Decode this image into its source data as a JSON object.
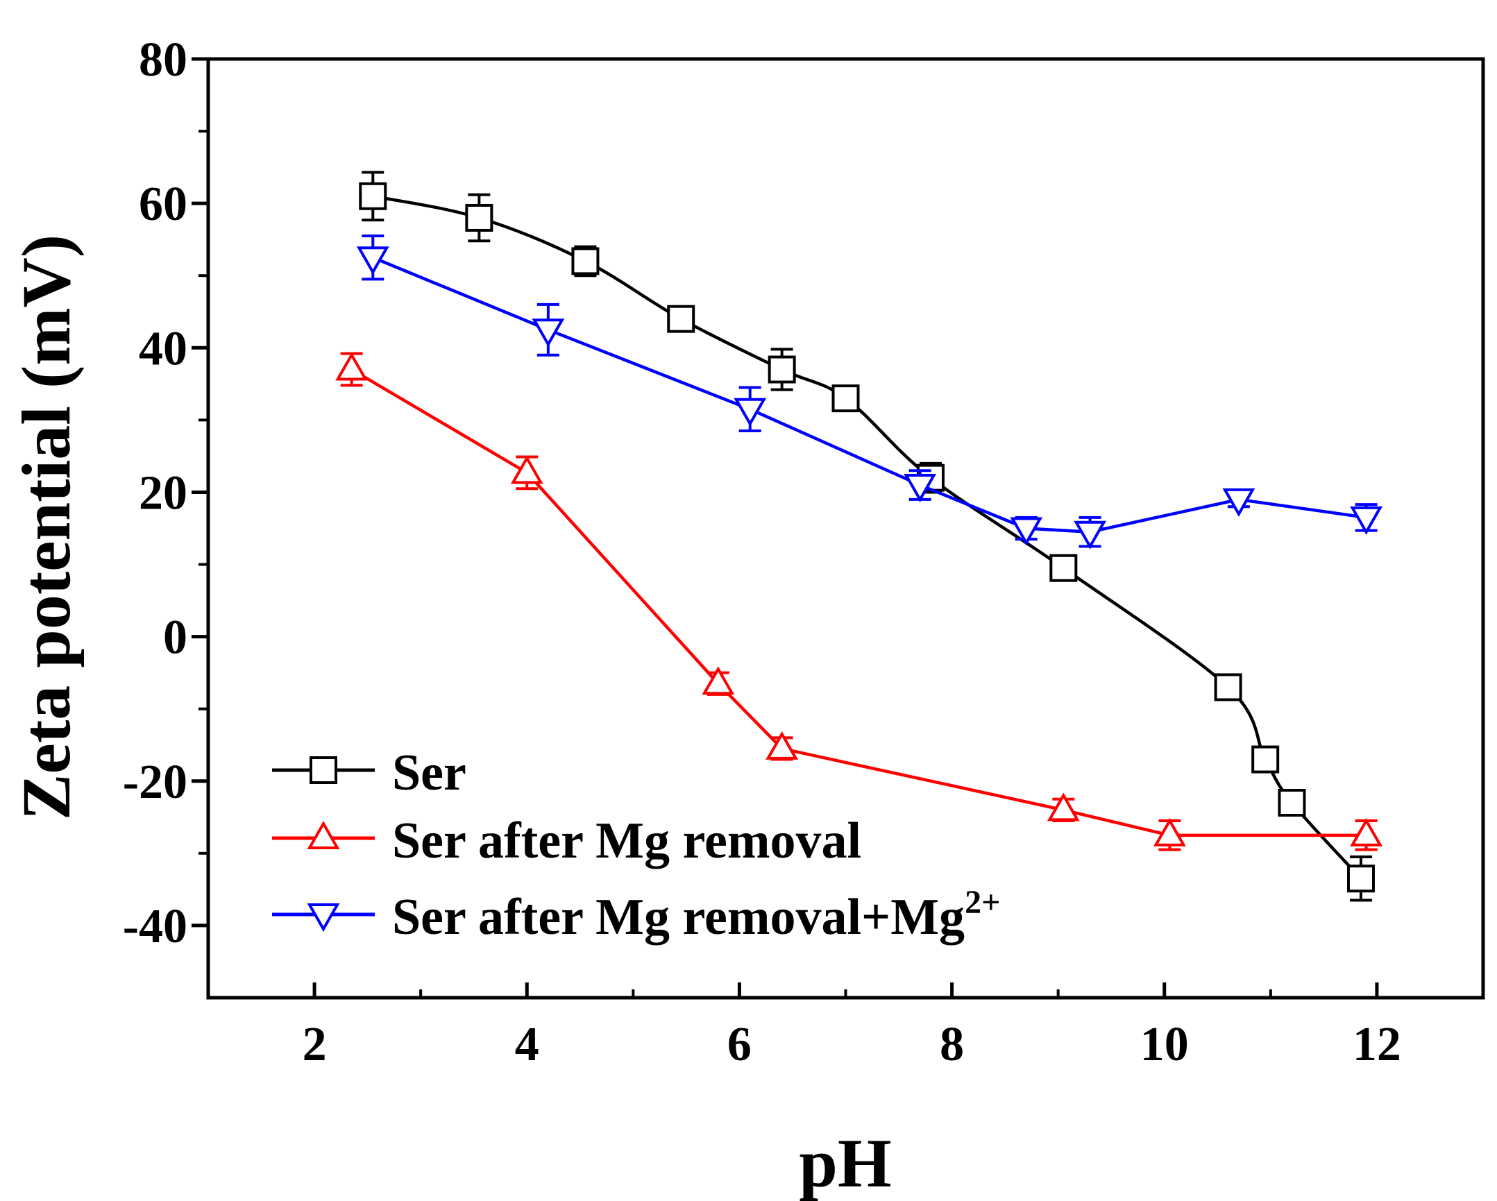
{
  "chart_data": {
    "type": "line",
    "title": "",
    "xlabel": "pH",
    "ylabel": "Zeta potential (mV)",
    "xlim": [
      1,
      13
    ],
    "ylim": [
      -50,
      80
    ],
    "xticks": [
      2,
      4,
      6,
      8,
      10,
      12
    ],
    "yticks": [
      80,
      60,
      40,
      20,
      0,
      -20,
      -40
    ],
    "xtick_labels": [
      "2",
      "4",
      "6",
      "8",
      "10",
      "12"
    ],
    "ytick_labels": [
      "80",
      "60",
      "40",
      "20",
      "0",
      "-20",
      "-40"
    ],
    "legend_position": "bottom-left",
    "series": [
      {
        "name": "Ser",
        "color": "#000000",
        "marker": "square",
        "smooth": true,
        "x": [
          2.55,
          3.55,
          4.55,
          5.45,
          6.4,
          7.0,
          7.8,
          9.05,
          10.6,
          10.95,
          11.2,
          11.85
        ],
        "y": [
          61.0,
          58.0,
          52.0,
          44.0,
          37.0,
          33.0,
          22.0,
          9.5,
          -7.0,
          -17.0,
          -23.0,
          -33.5
        ],
        "err": [
          3.3,
          3.2,
          2.0,
          1.0,
          2.8,
          1.0,
          2.0,
          1.0,
          1.2,
          1.2,
          1.2,
          3.0
        ]
      },
      {
        "name": "Ser after Mg removal",
        "color": "#ff0000",
        "marker": "triangle-up",
        "smooth": false,
        "x": [
          2.35,
          4.0,
          5.8,
          6.4,
          9.05,
          10.05,
          11.9
        ],
        "y": [
          37.0,
          22.7,
          -6.5,
          -15.5,
          -24.0,
          -27.5,
          -27.5
        ],
        "err": [
          2.2,
          2.2,
          1.5,
          1.5,
          1.5,
          2.0,
          2.0
        ]
      },
      {
        "name": "Ser after Mg removal+Mg",
        "name_superscript": "2+",
        "color": "#0000ff",
        "marker": "triangle-down",
        "smooth": false,
        "x": [
          2.55,
          4.2,
          6.1,
          7.7,
          8.7,
          9.3,
          10.7,
          11.9
        ],
        "y": [
          52.5,
          42.5,
          31.5,
          21.0,
          15.0,
          14.5,
          19.0,
          16.5
        ],
        "err": [
          3.0,
          3.5,
          3.0,
          2.0,
          1.5,
          2.0,
          1.0,
          1.8
        ]
      }
    ]
  }
}
